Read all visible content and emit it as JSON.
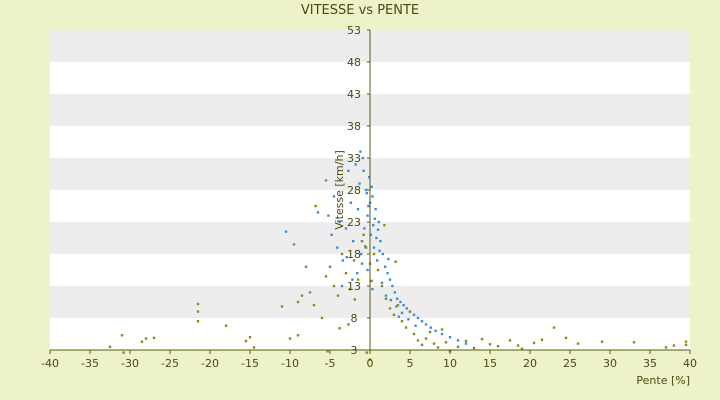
{
  "chart_data": {
    "type": "scatter",
    "title": "VITESSE vs PENTE",
    "xlabel": "Pente [%]",
    "ylabel": "Vitesse [km/h]",
    "xlim": [
      -40,
      40
    ],
    "ylim": [
      3,
      53
    ],
    "x_ticks": [
      -40,
      -35,
      -30,
      -25,
      -20,
      -15,
      -10,
      -5,
      0,
      5,
      10,
      15,
      20,
      25,
      30,
      35,
      40
    ],
    "y_ticks": [
      3,
      8,
      13,
      18,
      23,
      28,
      33,
      38,
      43,
      48,
      53
    ],
    "grid": "horizontal alternating bands",
    "legend": "none",
    "colors": {
      "background": "#eef2c9",
      "band_light": "#ffffff",
      "band_dark": "#ededed",
      "series_a": "#3e8fd9",
      "series_b": "#8a8a18",
      "axis": "#5a5a10"
    },
    "series": [
      {
        "color": "#3e8fd9",
        "x": [
          -5.5,
          -5.2,
          -4.8,
          -4.5,
          -4.1,
          -3.8,
          -3.4,
          -3.0,
          -2.7,
          -2.4,
          -2.1,
          -1.8,
          -1.5,
          -1.3,
          -1.1,
          -0.9,
          -0.7,
          -0.5,
          -0.3,
          -0.1,
          0.1,
          0.3,
          0.5,
          0.7,
          0.9,
          1.1,
          1.3,
          1.6,
          1.9,
          2.2,
          2.5,
          2.8,
          3.1,
          3.4,
          3.8,
          4.2,
          4.6,
          5.0,
          5.5,
          6.0,
          6.5,
          7.0,
          7.6,
          8.2,
          9.0,
          10.0,
          11.0,
          12.0,
          -10.5,
          -9.5,
          -8.0,
          -6.5,
          -1.2,
          -0.8,
          -0.4,
          0.0,
          0.4,
          0.8,
          1.2,
          -1.6,
          -2.2,
          -2.9,
          -3.5,
          1.5,
          2.0,
          2.6,
          3.3,
          4.0,
          4.8,
          5.7,
          0.2,
          -0.2,
          0.6,
          -0.6,
          1.0,
          -1.0,
          0.3,
          -0.3,
          2.3,
          3.6
        ],
        "y": [
          29.5,
          24,
          21,
          27,
          19,
          23,
          17,
          22,
          31,
          26,
          20,
          32,
          25,
          29,
          18,
          33,
          22,
          28,
          24,
          30,
          21,
          27,
          19,
          25,
          17,
          23,
          20,
          18,
          16,
          15,
          14,
          13,
          12,
          11,
          10.5,
          10,
          9.5,
          9,
          8.5,
          8,
          7.5,
          7,
          6.5,
          6,
          5.5,
          5,
          4.5,
          4,
          21.5,
          19.5,
          16,
          24.5,
          34,
          31,
          27.5,
          26,
          22.5,
          20.5,
          18.5,
          15,
          14,
          17.5,
          13,
          13.5,
          11.5,
          10.8,
          9.8,
          8.8,
          7.8,
          6.8,
          28.5,
          25.5,
          23.5,
          19.2,
          21.8,
          16.5,
          12.5,
          15.5,
          17.2,
          8.2
        ]
      },
      {
        "color": "#8a8a18",
        "x": [
          -32.5,
          -31.0,
          -30.8,
          -28.5,
          -28.0,
          -27.0,
          -21.5,
          -21.5,
          -21.5,
          -18.0,
          -15.0,
          -14.5,
          -15.5,
          -11.0,
          -10.0,
          -9.0,
          -8.5,
          -7.5,
          -7.0,
          -6.0,
          -5.5,
          -5.0,
          -4.5,
          -4.0,
          -3.5,
          -3.0,
          -2.5,
          -2.0,
          -1.5,
          -1.0,
          -0.5,
          0.0,
          0.5,
          1.0,
          1.5,
          2.0,
          2.5,
          3.0,
          3.5,
          4.0,
          4.5,
          5.0,
          5.5,
          6.0,
          6.5,
          7.0,
          7.5,
          8.0,
          8.5,
          9.0,
          9.5,
          10.0,
          11.0,
          12.0,
          13.0,
          14.0,
          15.0,
          16.0,
          17.5,
          18.5,
          19.0,
          20.5,
          21.5,
          23.0,
          24.5,
          26.0,
          29.0,
          33.0,
          37.0,
          38.0,
          39.5,
          39.5,
          -9.0,
          -6.8,
          -5.3,
          -3.8,
          -2.7,
          -1.9,
          -0.8,
          0.2,
          1.8,
          3.2,
          0.0,
          -0.4
        ],
        "y": [
          3.5,
          5.3,
          2.6,
          4.3,
          4.8,
          4.9,
          10.2,
          9.0,
          7.5,
          6.8,
          5.0,
          3.4,
          4.4,
          9.8,
          4.8,
          10.5,
          11.5,
          12.0,
          10.0,
          8.0,
          14.5,
          16.0,
          13.0,
          11.5,
          18.0,
          15.0,
          12.5,
          17.0,
          14.0,
          20.0,
          19.0,
          16.5,
          18.0,
          15.5,
          13.0,
          11.0,
          9.5,
          8.5,
          10.0,
          7.5,
          6.5,
          9.0,
          5.5,
          4.5,
          3.8,
          4.8,
          5.8,
          4.0,
          3.4,
          6.2,
          4.2,
          2.8,
          3.5,
          4.4,
          3.3,
          4.7,
          3.9,
          3.6,
          4.5,
          3.7,
          3.2,
          4.1,
          4.6,
          6.5,
          4.9,
          4.0,
          4.3,
          4.2,
          3.4,
          3.7,
          3.8,
          4.3,
          5.3,
          25.5,
          2.8,
          6.4,
          7.0,
          10.9,
          21.0,
          13.8,
          22.5,
          16.8,
          1.5,
          2.6
        ]
      }
    ]
  }
}
